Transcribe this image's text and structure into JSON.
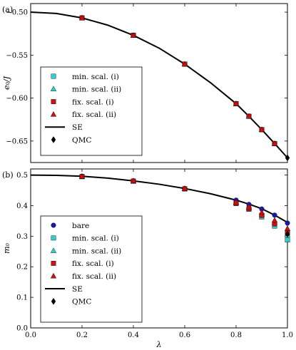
{
  "chart_data": [
    {
      "type": "line",
      "panel_label": "(a)",
      "xlabel": "λ",
      "ylabel": "e₀/J",
      "xlim": [
        0.0,
        1.0
      ],
      "ylim": [
        -0.675,
        -0.49
      ],
      "xticks": [],
      "yticks": [
        -0.5,
        -0.55,
        -0.6,
        -0.65
      ],
      "ytick_labels": [
        "−0.50",
        "−0.55",
        "−0.60",
        "−0.65"
      ],
      "legend_position": "lower-left",
      "series": [
        {
          "name": "min. scal. (i)",
          "kind": "marker",
          "marker": "square",
          "color": "#33cccc",
          "x": [
            0.2,
            0.4,
            0.6,
            0.8,
            0.85,
            0.9,
            0.95
          ],
          "y": [
            -0.5067,
            -0.527,
            -0.5605,
            -0.6065,
            -0.6212,
            -0.6367,
            -0.6529
          ]
        },
        {
          "name": "min. scal. (ii)",
          "kind": "marker",
          "marker": "triangle",
          "color": "#33cccc",
          "x": [
            0.2,
            0.4,
            0.6,
            0.8,
            0.85,
            0.9,
            0.95
          ],
          "y": [
            -0.5067,
            -0.527,
            -0.5605,
            -0.6065,
            -0.6212,
            -0.6367,
            -0.6529
          ]
        },
        {
          "name": "fix. scal. (i)",
          "kind": "marker",
          "marker": "square",
          "color": "#cc1111",
          "x": [
            0.2,
            0.4,
            0.6,
            0.8,
            0.85,
            0.9,
            0.95
          ],
          "y": [
            -0.5067,
            -0.527,
            -0.5605,
            -0.6065,
            -0.6212,
            -0.6367,
            -0.6529
          ]
        },
        {
          "name": "fix. scal. (ii)",
          "kind": "marker",
          "marker": "triangle",
          "color": "#cc1111",
          "x": [
            0.2,
            0.4,
            0.6,
            0.8,
            0.85,
            0.9,
            0.95
          ],
          "y": [
            -0.5067,
            -0.527,
            -0.5605,
            -0.6065,
            -0.6212,
            -0.6367,
            -0.6529
          ]
        },
        {
          "name": "SE",
          "kind": "line",
          "color": "#000000",
          "x": [
            0.0,
            0.1,
            0.2,
            0.3,
            0.4,
            0.5,
            0.6,
            0.7,
            0.8,
            0.85,
            0.9,
            0.95,
            1.0
          ],
          "y": [
            -0.5,
            -0.5015,
            -0.5067,
            -0.5151,
            -0.527,
            -0.5418,
            -0.5605,
            -0.582,
            -0.6065,
            -0.6212,
            -0.6367,
            -0.6529,
            -0.6695
          ]
        },
        {
          "name": "QMC",
          "kind": "marker",
          "marker": "diamond",
          "color": "#000000",
          "x": [
            1.0
          ],
          "y": [
            -0.6695
          ]
        }
      ]
    },
    {
      "type": "line",
      "panel_label": "(b)",
      "xlabel": "λ",
      "ylabel": "m₀",
      "xlim": [
        0.0,
        1.0
      ],
      "ylim": [
        0.0,
        0.52
      ],
      "xticks": [
        0.0,
        0.2,
        0.4,
        0.6,
        0.8,
        1.0
      ],
      "xtick_labels": [
        "0.0",
        "0.2",
        "0.4",
        "0.6",
        "0.8",
        "1.0"
      ],
      "yticks": [
        0.0,
        0.1,
        0.2,
        0.3,
        0.4,
        0.5
      ],
      "ytick_labels": [
        "0.0",
        "0.1",
        "0.2",
        "0.3",
        "0.4",
        "0.5"
      ],
      "legend_position": "lower-left",
      "series": [
        {
          "name": "bare",
          "kind": "marker",
          "marker": "circle",
          "color": "#1a1aaa",
          "x": [
            0.2,
            0.4,
            0.6,
            0.8,
            0.85,
            0.9,
            0.95,
            1.0
          ],
          "y": [
            0.496,
            0.481,
            0.456,
            0.418,
            0.404,
            0.389,
            0.369,
            0.343
          ]
        },
        {
          "name": "min. scal. (i)",
          "kind": "marker",
          "marker": "square",
          "color": "#33cccc",
          "x": [
            0.2,
            0.4,
            0.6,
            0.8,
            0.85,
            0.9,
            0.95,
            1.0
          ],
          "y": [
            0.495,
            0.48,
            0.455,
            0.407,
            0.388,
            0.363,
            0.333,
            0.288
          ]
        },
        {
          "name": "min. scal. (ii)",
          "kind": "marker",
          "marker": "triangle",
          "color": "#33cccc",
          "x": [
            0.2,
            0.4,
            0.6,
            0.8,
            0.85,
            0.9,
            0.95,
            1.0
          ],
          "y": [
            0.495,
            0.48,
            0.455,
            0.41,
            0.393,
            0.372,
            0.345,
            0.305
          ]
        },
        {
          "name": "fix. scal. (i)",
          "kind": "marker",
          "marker": "square",
          "color": "#cc1111",
          "x": [
            0.2,
            0.4,
            0.6,
            0.8,
            0.85,
            0.9,
            0.95,
            1.0
          ],
          "y": [
            0.495,
            0.48,
            0.455,
            0.408,
            0.39,
            0.368,
            0.34,
            0.31
          ]
        },
        {
          "name": "fix. scal. (ii)",
          "kind": "marker",
          "marker": "triangle",
          "color": "#cc1111",
          "x": [
            0.2,
            0.4,
            0.6,
            0.8,
            0.85,
            0.9,
            0.95,
            1.0
          ],
          "y": [
            0.496,
            0.481,
            0.456,
            0.412,
            0.396,
            0.378,
            0.352,
            0.325
          ]
        },
        {
          "name": "SE",
          "kind": "line",
          "color": "#000000",
          "x": [
            0.0,
            0.1,
            0.2,
            0.3,
            0.4,
            0.5,
            0.6,
            0.7,
            0.8,
            0.85,
            0.9,
            0.95,
            1.0
          ],
          "y": [
            0.5,
            0.499,
            0.496,
            0.49,
            0.481,
            0.47,
            0.456,
            0.439,
            0.418,
            0.405,
            0.39,
            0.369,
            0.345
          ]
        },
        {
          "name": "QMC",
          "kind": "marker",
          "marker": "diamond",
          "color": "#000000",
          "x": [
            1.0
          ],
          "y": [
            0.307
          ]
        }
      ]
    }
  ]
}
